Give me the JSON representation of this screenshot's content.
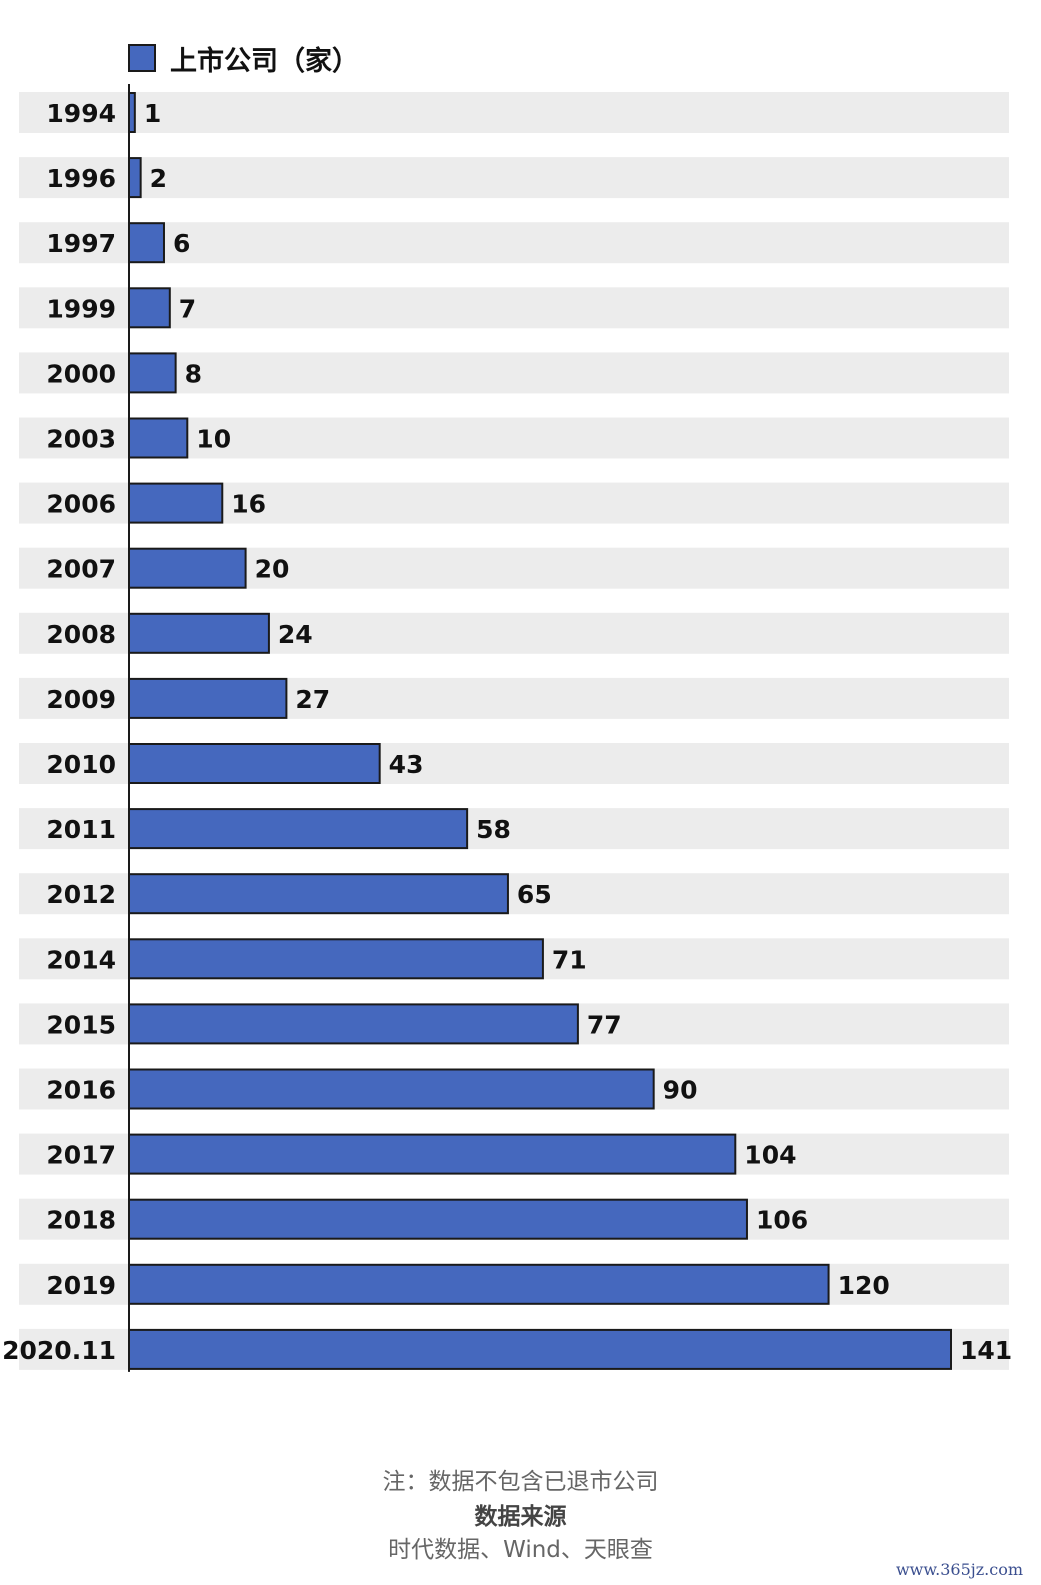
{
  "legend": {
    "label": "上市公司（家）",
    "color": "#4568be"
  },
  "chart_data": {
    "type": "bar",
    "orientation": "horizontal",
    "categories": [
      "1994",
      "1996",
      "1997",
      "1999",
      "2000",
      "2003",
      "2006",
      "2007",
      "2008",
      "2009",
      "2010",
      "2011",
      "2012",
      "2014",
      "2015",
      "2016",
      "2017",
      "2018",
      "2019",
      "2020.11"
    ],
    "series": [
      {
        "name": "上市公司（家）",
        "values": [
          1,
          2,
          6,
          7,
          8,
          10,
          16,
          20,
          24,
          27,
          43,
          58,
          65,
          71,
          77,
          90,
          104,
          106,
          120,
          141
        ]
      }
    ],
    "title": "",
    "xlabel": "",
    "ylabel": "",
    "xlim": [
      0,
      141
    ],
    "bar_color": "#4568be",
    "row_band_color": "#ececec",
    "data_labels": true
  },
  "footer": {
    "note": "注：数据不包含已退市公司",
    "source_title": "数据来源",
    "source_text": "时代数据、Wind、天眼查"
  },
  "watermark": "www.365jz.com"
}
